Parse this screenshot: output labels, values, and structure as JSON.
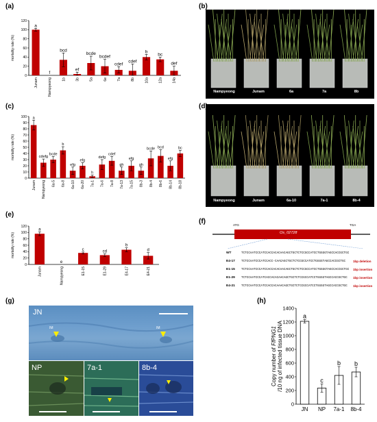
{
  "panels": {
    "a": "(a)",
    "b": "(b)",
    "c": "(c)",
    "d": "(d)",
    "e": "(e)",
    "f": "(f)",
    "g": "(g)",
    "h": "(h)"
  },
  "chart_data": [
    {
      "id": "a",
      "type": "bar",
      "ylabel": "mortality rate (%)",
      "ylim": [
        0,
        120
      ],
      "yticks": [
        0,
        20,
        40,
        60,
        80,
        100,
        120
      ],
      "categories": [
        "Junam",
        "Nampyeong",
        "1b",
        "3b",
        "5a",
        "6e",
        "7a",
        "8b",
        "10a",
        "12a",
        "14a"
      ],
      "values": [
        100,
        0,
        34,
        3,
        27,
        20,
        12,
        10,
        40,
        35,
        10
      ],
      "errors": [
        3,
        0,
        15,
        4,
        15,
        15,
        7,
        15,
        6,
        5,
        10
      ],
      "letters": [
        "a",
        "f",
        "bcd",
        "ef",
        "bcde",
        "bcdef",
        "cdef",
        "cdef",
        "b",
        "bc",
        "def"
      ],
      "bar_color": "#c00000"
    },
    {
      "id": "c",
      "type": "bar",
      "ylabel": "mortality rate (%)",
      "ylim": [
        0,
        100
      ],
      "yticks": [
        0,
        10,
        20,
        30,
        40,
        50,
        60,
        70,
        80,
        90,
        100
      ],
      "categories": [
        "Junam",
        "Nampyeong",
        "6a-5",
        "6a-8",
        "6a-10",
        "6a-20",
        "7a-1",
        "7a-6",
        "7a-8",
        "7a-13",
        "7a-15",
        "8b-3",
        "8b-4",
        "8b-6",
        "8b-14",
        "8b-18"
      ],
      "values": [
        86,
        25,
        30,
        45,
        12,
        20,
        3,
        22,
        28,
        12,
        20,
        12,
        32,
        36,
        20,
        40
      ],
      "errors": [
        8,
        6,
        5,
        6,
        6,
        5,
        2,
        8,
        7,
        6,
        8,
        6,
        12,
        10,
        8,
        5
      ],
      "letters": [
        "a",
        "cdefg",
        "bcde",
        "b",
        "efg",
        "efg",
        "h",
        "defg",
        "cdef",
        "gh",
        "efg",
        "gh",
        "bcde",
        "bcd",
        "efg",
        "bc"
      ],
      "bar_color": "#c00000"
    },
    {
      "id": "e",
      "type": "bar",
      "ylabel": "mortality rate (%)",
      "ylim": [
        0,
        120
      ],
      "yticks": [
        0,
        20,
        40,
        60,
        80,
        100,
        120
      ],
      "categories": [
        "Junam",
        "Nampyeong",
        "E1-15",
        "E1-29",
        "E4-17",
        "E4-21"
      ],
      "values": [
        96,
        0,
        36,
        29,
        46,
        27
      ],
      "errors": [
        6,
        0,
        3,
        4,
        6,
        10
      ],
      "letters": [
        "a",
        "e",
        "c",
        "cd",
        "b",
        "d"
      ],
      "bar_color": "#c00000"
    },
    {
      "id": "h",
      "type": "bar",
      "ylabel_parts": [
        "Copy number of ",
        "FfPNG1",
        "/10 ng of infected tissue DNA"
      ],
      "ylim": [
        0,
        1400
      ],
      "yticks": [
        0,
        200,
        400,
        600,
        800,
        1000,
        1200,
        1400
      ],
      "categories": [
        "JN",
        "NP",
        "7a-1",
        "8b-4"
      ],
      "values": [
        1210,
        235,
        420,
        470
      ],
      "errors": [
        25,
        60,
        130,
        70
      ],
      "letters": [
        "a",
        "c",
        "b",
        "b"
      ],
      "bar_color": "#ffffff"
    }
  ],
  "photos": {
    "b": [
      "Nampyeong",
      "Junam",
      "6a",
      "7a",
      "8b"
    ],
    "d": [
      "Nampyeong",
      "Junam",
      "6a-10",
      "7a-1",
      "8b-4"
    ]
  },
  "gene": {
    "start": "ATG",
    "stop": "TGA",
    "name": "Os_02728"
  },
  "sequences": [
    {
      "label": "WT",
      "seq": "TCTCCAATCCCATCCACCACACAACAGCTGCTCTCCGCCATCCTGGGGTAGCCACCGCTGC",
      "note": ""
    },
    {
      "label": "E4-17",
      "seq": "TCTCCAATCCCATCCACC-CAACAGCTGCTCTCCGCCATCCTGGGGTAGCCACCGCTGC",
      "note": "1bp deletion"
    },
    {
      "label": "E1-15",
      "seq": "TCTCCAATCCCATCCACCACACAACAGCTGCTCTCCGCCATCCTGGGGTAGCCACCGCTGC",
      "note": "1bp insertion"
    },
    {
      "label": "E1-29",
      "seq": "TCTCCAATCCCATCACCACACAACAGCTGCTCTCCGCCATCCTGGGGTAGCCACCGCTGC",
      "note": "1bp insertion"
    },
    {
      "label": "E4-21",
      "seq": "TCTCCAATCCCATCCACCACAAACAGCTGCTCTCCGCCATCCTGGGGTAGCCACCGCTGC",
      "note": "1bp insertion"
    }
  ],
  "micro": {
    "jn": "JN",
    "np": "NP",
    "l7a": "7a-1",
    "l8b": "8b-4",
    "im": "IM"
  }
}
